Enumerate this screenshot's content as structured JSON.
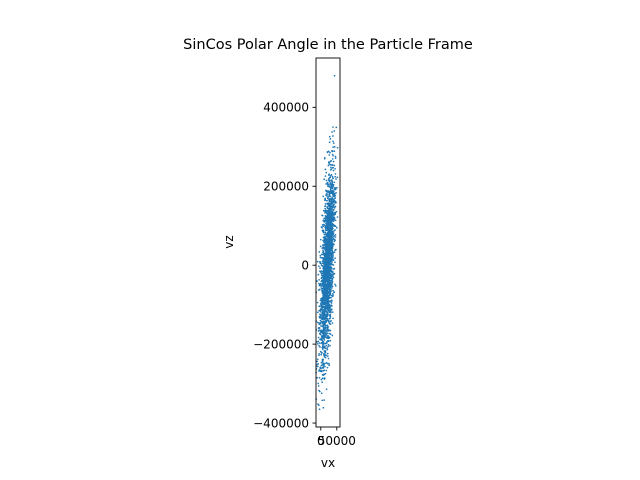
{
  "chart_data": {
    "type": "scatter",
    "title": "SinCos Polar Angle in the Particle Frame",
    "xlabel": "vx",
    "ylabel": "vz",
    "xlim": [
      -15000,
      60000
    ],
    "ylim": [
      -410000,
      525000
    ],
    "xticks": [
      {
        "value": 0,
        "label": "0"
      },
      {
        "value": 50000,
        "label": "50000"
      }
    ],
    "yticks": [
      {
        "value": -400000,
        "label": "−400000"
      },
      {
        "value": -200000,
        "label": "−200000"
      },
      {
        "value": 0,
        "label": "0"
      },
      {
        "value": 200000,
        "label": "200000"
      },
      {
        "value": 400000,
        "label": "400000"
      }
    ],
    "grid": false,
    "marker_color": "#1f77b4",
    "cloud": {
      "description_points": 2400,
      "vz_range": [
        -365000,
        355000
      ],
      "outlier": {
        "vx": 43000,
        "vz": 480000
      },
      "center_vx_at_vz_min": 0,
      "center_vx_at_vz_max": 40000
    },
    "series": [
      {
        "name": "",
        "points": [
          {
            "x": 43000,
            "y": 480000
          },
          {
            "x": 38000,
            "y": 350000
          },
          {
            "x": 42000,
            "y": 340000
          },
          {
            "x": 30000,
            "y": 320000
          },
          {
            "x": 35000,
            "y": 290000
          },
          {
            "x": 25000,
            "y": 260000
          },
          {
            "x": 40000,
            "y": 240000
          },
          {
            "x": 20000,
            "y": 180000
          },
          {
            "x": 45000,
            "y": 170000
          },
          {
            "x": 30000,
            "y": 120000
          },
          {
            "x": 10000,
            "y": 60000
          },
          {
            "x": 22000,
            "y": 20000
          },
          {
            "x": 5000,
            "y": -40000
          },
          {
            "x": 15000,
            "y": -90000
          },
          {
            "x": -5000,
            "y": -150000
          },
          {
            "x": 8000,
            "y": -200000
          },
          {
            "x": -8000,
            "y": -250000
          },
          {
            "x": 2000,
            "y": -290000
          },
          {
            "x": -3000,
            "y": -320000
          },
          {
            "x": -6000,
            "y": -355000
          },
          {
            "x": -4000,
            "y": -365000
          }
        ]
      }
    ]
  }
}
